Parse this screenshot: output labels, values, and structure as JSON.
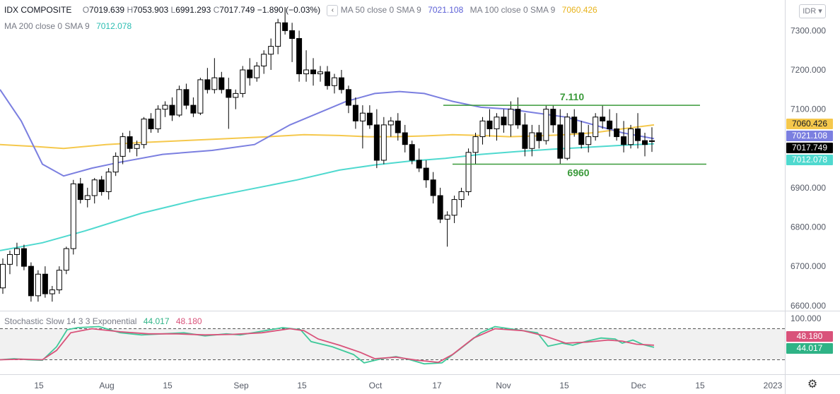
{
  "legend": {
    "symbol": "IDX COMPOSITE",
    "o_label": "O",
    "o_value": "7019.639",
    "h_label": "H",
    "h_value": "7053.903",
    "l_label": "L",
    "l_value": "6991.293",
    "c_label": "C",
    "c_value": "7017.749",
    "change": "−1.890 (−0.03%)",
    "ma50_label": "MA 50 close 0 SMA 9",
    "ma50_value": "7021.108",
    "ma100_label": "MA 100 close 0 SMA 9",
    "ma100_value": "7060.426",
    "ma200_label": "MA 200 close 0 SMA 9",
    "ma200_value": "7012.078",
    "back_glyph": "‹"
  },
  "currency": "IDR ▾",
  "stoch_legend": {
    "label": "Stochastic Slow 14 3 3 Exponential",
    "k_value": "44.017",
    "d_value": "48.180"
  },
  "price_tags": {
    "ma100": "7060.426",
    "ma50": "7021.108",
    "close": "7017.749",
    "ma200": "7012.078"
  },
  "stoch_tags": {
    "d": "48.180",
    "k": "44.017"
  },
  "annotations": {
    "resistance": "7.110",
    "support": "6960"
  },
  "gear_glyph": "⚙",
  "colors": {
    "up": "#ffffff",
    "down": "#000000",
    "ma50": "#7b7fe0",
    "ma100": "#f5c84c",
    "ma200": "#4fd9cf",
    "stoch_k": "#3fc99a",
    "stoch_d": "#d9527a",
    "level_line": "#3a9a3a",
    "close_tag": "#000000"
  },
  "chart_data": {
    "type": "candlestick",
    "price_axis": {
      "ticks": [
        "7300.000",
        "7200.000",
        "7100.000",
        "7000.000",
        "6900.000",
        "6800.000",
        "6700.000",
        "6600.000"
      ],
      "range": [
        6587,
        7378
      ]
    },
    "stoch_axis": {
      "ticks": [
        "100.000"
      ],
      "range": [
        -8,
        112
      ],
      "bands": [
        80,
        20
      ]
    },
    "time_axis": {
      "ticks": [
        "15",
        "Aug",
        "15",
        "Sep",
        "15",
        "Oct",
        "17",
        "Nov",
        "15",
        "Dec",
        "15",
        "2023"
      ]
    },
    "levels": [
      {
        "label": "7.110",
        "value": 7110
      },
      {
        "label": "6960",
        "value": 6960
      }
    ],
    "candles": [
      [
        6645,
        6720,
        6630,
        6705
      ],
      [
        6705,
        6740,
        6680,
        6730
      ],
      [
        6730,
        6760,
        6700,
        6745
      ],
      [
        6745,
        6755,
        6690,
        6700
      ],
      [
        6700,
        6710,
        6610,
        6625
      ],
      [
        6625,
        6690,
        6610,
        6680
      ],
      [
        6680,
        6700,
        6620,
        6630
      ],
      [
        6630,
        6650,
        6610,
        6640
      ],
      [
        6640,
        6700,
        6630,
        6690
      ],
      [
        6690,
        6750,
        6680,
        6745
      ],
      [
        6745,
        6920,
        6730,
        6910
      ],
      [
        6910,
        6925,
        6860,
        6870
      ],
      [
        6870,
        6900,
        6850,
        6880
      ],
      [
        6880,
        6925,
        6860,
        6920
      ],
      [
        6920,
        6930,
        6880,
        6890
      ],
      [
        6890,
        6950,
        6870,
        6940
      ],
      [
        6940,
        6990,
        6930,
        6980
      ],
      [
        6980,
        7040,
        6960,
        7030
      ],
      [
        7030,
        7045,
        6990,
        7000
      ],
      [
        7000,
        7020,
        6980,
        7010
      ],
      [
        7010,
        7080,
        7000,
        7075
      ],
      [
        7075,
        7090,
        7040,
        7050
      ],
      [
        7050,
        7110,
        7040,
        7100
      ],
      [
        7100,
        7120,
        7080,
        7110
      ],
      [
        7110,
        7130,
        7070,
        7085
      ],
      [
        7085,
        7160,
        7080,
        7150
      ],
      [
        7150,
        7165,
        7100,
        7110
      ],
      [
        7110,
        7130,
        7080,
        7090
      ],
      [
        7090,
        7180,
        7085,
        7175
      ],
      [
        7175,
        7205,
        7140,
        7150
      ],
      [
        7150,
        7230,
        7140,
        7180
      ],
      [
        7180,
        7195,
        7140,
        7150
      ],
      [
        7150,
        7180,
        7050,
        7130
      ],
      [
        7130,
        7150,
        7100,
        7140
      ],
      [
        7140,
        7210,
        7130,
        7200
      ],
      [
        7200,
        7230,
        7160,
        7180
      ],
      [
        7180,
        7220,
        7170,
        7210
      ],
      [
        7210,
        7250,
        7190,
        7240
      ],
      [
        7240,
        7280,
        7200,
        7260
      ],
      [
        7260,
        7330,
        7240,
        7320
      ],
      [
        7320,
        7360,
        7290,
        7300
      ],
      [
        7300,
        7320,
        7220,
        7280
      ],
      [
        7280,
        7300,
        7170,
        7190
      ],
      [
        7190,
        7250,
        7170,
        7200
      ],
      [
        7200,
        7230,
        7160,
        7190
      ],
      [
        7190,
        7210,
        7170,
        7195
      ],
      [
        7195,
        7210,
        7150,
        7160
      ],
      [
        7160,
        7190,
        7140,
        7180
      ],
      [
        7180,
        7200,
        7140,
        7150
      ],
      [
        7150,
        7160,
        7090,
        7110
      ],
      [
        7110,
        7130,
        7050,
        7070
      ],
      [
        7070,
        7110,
        7000,
        7090
      ],
      [
        7090,
        7110,
        7050,
        7060
      ],
      [
        7060,
        7100,
        6950,
        6970
      ],
      [
        6970,
        7080,
        6960,
        7060
      ],
      [
        7060,
        7080,
        7030,
        7070
      ],
      [
        7070,
        7090,
        7020,
        7040
      ],
      [
        7040,
        7060,
        6990,
        7010
      ],
      [
        7010,
        7020,
        6960,
        6970
      ],
      [
        6970,
        7000,
        6940,
        6950
      ],
      [
        6950,
        6970,
        6900,
        6920
      ],
      [
        6920,
        6940,
        6860,
        6880
      ],
      [
        6880,
        6900,
        6810,
        6820
      ],
      [
        6820,
        6840,
        6750,
        6830
      ],
      [
        6830,
        6880,
        6810,
        6870
      ],
      [
        6870,
        6900,
        6850,
        6890
      ],
      [
        6890,
        7000,
        6880,
        6990
      ],
      [
        6990,
        7040,
        6960,
        7030
      ],
      [
        7030,
        7080,
        7010,
        7070
      ],
      [
        7070,
        7100,
        7030,
        7050
      ],
      [
        7050,
        7090,
        7020,
        7080
      ],
      [
        7080,
        7100,
        7040,
        7060
      ],
      [
        7060,
        7120,
        7030,
        7100
      ],
      [
        7100,
        7130,
        7050,
        7060
      ],
      [
        7060,
        7090,
        6980,
        7000
      ],
      [
        7000,
        7060,
        6980,
        7040
      ],
      [
        7040,
        7060,
        7000,
        7020
      ],
      [
        7020,
        7110,
        7010,
        7100
      ],
      [
        7100,
        7110,
        7040,
        7060
      ],
      [
        7060,
        7100,
        6960,
        6975
      ],
      [
        6975,
        7090,
        6970,
        7080
      ],
      [
        7080,
        7100,
        7030,
        7040
      ],
      [
        7040,
        7070,
        7000,
        7010
      ],
      [
        7010,
        7060,
        6990,
        7030
      ],
      [
        7030,
        7090,
        7020,
        7080
      ],
      [
        7080,
        7110,
        7050,
        7070
      ],
      [
        7070,
        7100,
        7030,
        7050
      ],
      [
        7050,
        7090,
        7020,
        7030
      ],
      [
        7030,
        7070,
        6990,
        7010
      ],
      [
        7010,
        7060,
        7000,
        7050
      ],
      [
        7050,
        7090,
        7000,
        7020
      ],
      [
        7020,
        7040,
        6980,
        7010
      ],
      [
        7019.639,
        7053.903,
        6991.293,
        7017.749
      ]
    ],
    "ma50": [
      [
        0,
        7150
      ],
      [
        30,
        7070
      ],
      [
        60,
        6960
      ],
      [
        90,
        6930
      ],
      [
        130,
        6950
      ],
      [
        170,
        6965
      ],
      [
        230,
        6985
      ],
      [
        300,
        6995
      ],
      [
        360,
        7010
      ],
      [
        410,
        7060
      ],
      [
        450,
        7090
      ],
      [
        490,
        7120
      ],
      [
        530,
        7140
      ],
      [
        565,
        7145
      ],
      [
        600,
        7140
      ],
      [
        640,
        7120
      ],
      [
        680,
        7105
      ],
      [
        720,
        7100
      ],
      [
        760,
        7090
      ],
      [
        800,
        7080
      ],
      [
        840,
        7060
      ],
      [
        880,
        7040
      ],
      [
        925,
        7025
      ]
    ],
    "ma100": [
      [
        0,
        7010
      ],
      [
        50,
        7005
      ],
      [
        90,
        7000
      ],
      [
        150,
        7010
      ],
      [
        200,
        7015
      ],
      [
        260,
        7020
      ],
      [
        320,
        7025
      ],
      [
        380,
        7030
      ],
      [
        430,
        7035
      ],
      [
        480,
        7033
      ],
      [
        520,
        7030
      ],
      [
        560,
        7030
      ],
      [
        600,
        7032
      ],
      [
        640,
        7035
      ],
      [
        680,
        7033
      ],
      [
        720,
        7030
      ],
      [
        760,
        7032
      ],
      [
        800,
        7035
      ],
      [
        840,
        7040
      ],
      [
        880,
        7050
      ],
      [
        925,
        7060
      ]
    ],
    "ma200": [
      [
        0,
        6740
      ],
      [
        60,
        6760
      ],
      [
        120,
        6790
      ],
      [
        200,
        6835
      ],
      [
        280,
        6870
      ],
      [
        350,
        6895
      ],
      [
        420,
        6920
      ],
      [
        480,
        6945
      ],
      [
        530,
        6958
      ],
      [
        580,
        6968
      ],
      [
        630,
        6975
      ],
      [
        680,
        6985
      ],
      [
        730,
        6992
      ],
      [
        780,
        6998
      ],
      [
        830,
        7003
      ],
      [
        880,
        7008
      ],
      [
        925,
        7012
      ]
    ],
    "stoch_k": [
      [
        0,
        20
      ],
      [
        20,
        22
      ],
      [
        40,
        20
      ],
      [
        60,
        19
      ],
      [
        80,
        45
      ],
      [
        95,
        78
      ],
      [
        110,
        82
      ],
      [
        140,
        84
      ],
      [
        170,
        72
      ],
      [
        200,
        68
      ],
      [
        230,
        70
      ],
      [
        260,
        72
      ],
      [
        290,
        66
      ],
      [
        320,
        70
      ],
      [
        340,
        68
      ],
      [
        370,
        75
      ],
      [
        400,
        82
      ],
      [
        425,
        78
      ],
      [
        440,
        55
      ],
      [
        470,
        45
      ],
      [
        500,
        30
      ],
      [
        515,
        14
      ],
      [
        540,
        22
      ],
      [
        560,
        26
      ],
      [
        580,
        20
      ],
      [
        600,
        12
      ],
      [
        625,
        14
      ],
      [
        650,
        40
      ],
      [
        680,
        72
      ],
      [
        700,
        84
      ],
      [
        730,
        78
      ],
      [
        760,
        72
      ],
      [
        775,
        46
      ],
      [
        795,
        52
      ],
      [
        810,
        48
      ],
      [
        830,
        56
      ],
      [
        850,
        62
      ],
      [
        870,
        60
      ],
      [
        880,
        52
      ],
      [
        895,
        58
      ],
      [
        910,
        49
      ],
      [
        925,
        44
      ]
    ],
    "stoch_d": [
      [
        0,
        20
      ],
      [
        30,
        21
      ],
      [
        60,
        20
      ],
      [
        80,
        38
      ],
      [
        100,
        72
      ],
      [
        130,
        80
      ],
      [
        170,
        74
      ],
      [
        210,
        70
      ],
      [
        250,
        70
      ],
      [
        290,
        68
      ],
      [
        330,
        69
      ],
      [
        370,
        72
      ],
      [
        410,
        80
      ],
      [
        430,
        76
      ],
      [
        450,
        60
      ],
      [
        480,
        48
      ],
      [
        510,
        34
      ],
      [
        530,
        22
      ],
      [
        560,
        25
      ],
      [
        590,
        19
      ],
      [
        620,
        15
      ],
      [
        640,
        30
      ],
      [
        670,
        62
      ],
      [
        700,
        80
      ],
      [
        740,
        76
      ],
      [
        770,
        66
      ],
      [
        800,
        52
      ],
      [
        830,
        54
      ],
      [
        860,
        58
      ],
      [
        880,
        56
      ],
      [
        900,
        50
      ],
      [
        925,
        48
      ]
    ]
  }
}
